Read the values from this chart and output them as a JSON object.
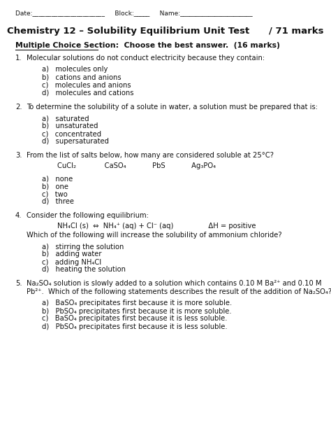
{
  "bg_color": "#ffffff",
  "title": "Chemistry 12 – Solubility Equilibrium Unit Test      / 71 marks",
  "section_header": "Multiple Choice Section:  Choose the best answer.  (16 marks)",
  "header_line": "Date:_______________________     Block:_____     Name:_______________________",
  "questions": [
    {
      "num": "1.",
      "text": "Molecular solutions do not conduct electricity because they contain:",
      "salts_line": null,
      "choices": [
        "a)   molecules only",
        "b)   cations and anions",
        "c)   molecules and anions",
        "d)   molecules and cations"
      ],
      "formula_line": null,
      "extra_text": null
    },
    {
      "num": "2.",
      "text": "To determine the solubility of a solute in water, a solution must be prepared that is:",
      "salts_line": null,
      "choices": [
        "a)   saturated",
        "b)   unsaturated",
        "c)   concentrated",
        "d)   supersaturated"
      ],
      "formula_line": null,
      "extra_text": null
    },
    {
      "num": "3.",
      "text": "From the list of salts below, how many are considered soluble at 25°C?",
      "salts_line": "CuCl₂             CaSO₄            PbS            Ag₃PO₄",
      "choices": [
        "a)   none",
        "b)   one",
        "c)   two",
        "d)   three"
      ],
      "formula_line": null,
      "extra_text": null
    },
    {
      "num": "4.",
      "text": "Consider the following equilibrium:",
      "salts_line": null,
      "formula_line": "NH₄Cl (s)  ⇔  NH₄⁺ (aq) + Cl⁻ (aq)                ΔH = positive",
      "extra_text": "Which of the following will increase the solubility of ammonium chloride?",
      "choices": [
        "a)   stirring the solution",
        "b)   adding water",
        "c)   adding NH₄Cl",
        "d)   heating the solution"
      ]
    },
    {
      "num": "5.",
      "text": "Na₂SO₄ solution is slowly added to a solution which contains 0.10 M Ba²⁺ and 0.10 M",
      "text2": "Pb²⁺.  Which of the following statements describes the result of the addition of Na₂SO₄?",
      "salts_line": null,
      "choices": [
        "a)   BaSO₄ precipitates first because it is more soluble.",
        "b)   PbSO₄ precipitates first because it is more soluble.",
        "c)   BaSO₄ precipitates first because it is less soluble.",
        "d)   PbSO₄ precipitates first because it is less soluble."
      ],
      "formula_line": null,
      "extra_text": null
    }
  ]
}
